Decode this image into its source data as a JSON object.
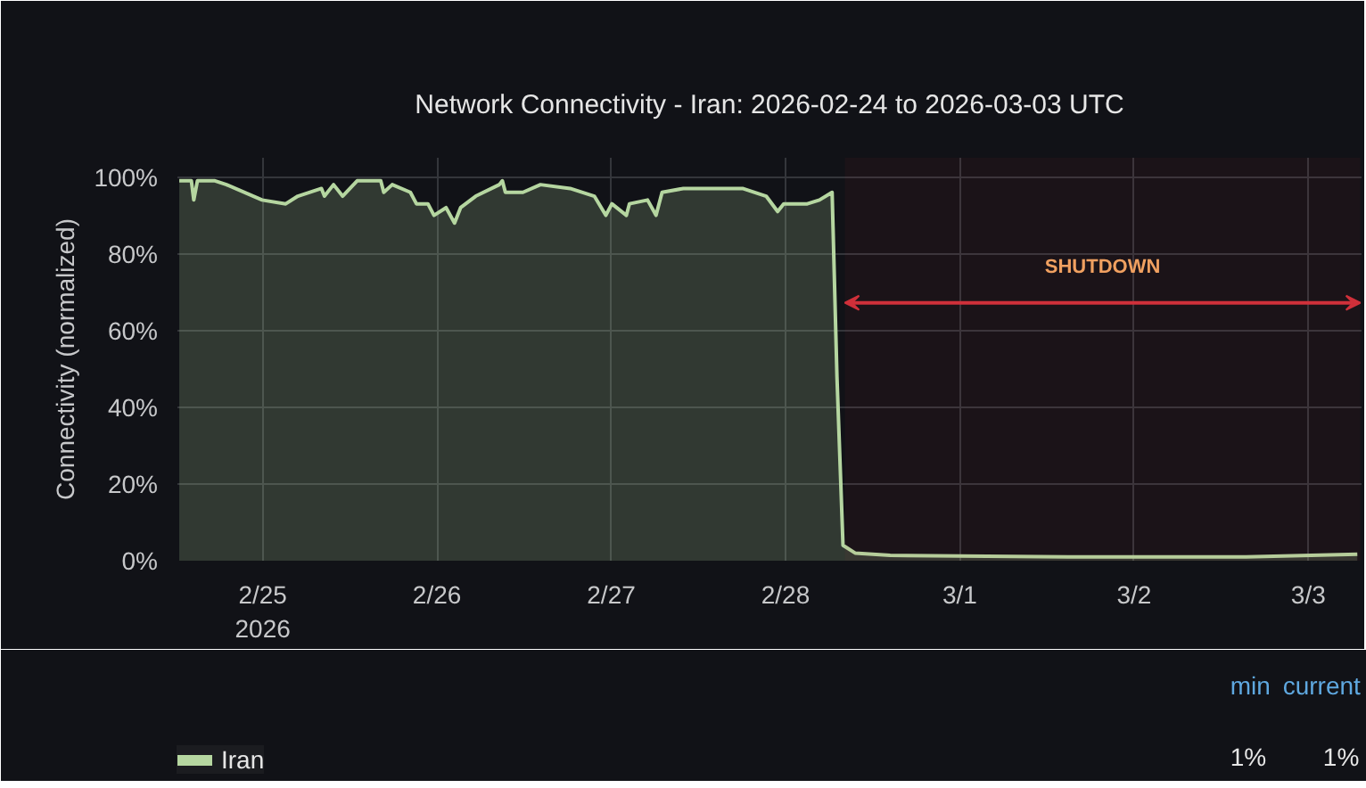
{
  "chart_data": {
    "type": "area",
    "title": "Network Connectivity - Iran: 2026-02-24 to 2026-03-03 UTC",
    "ylabel": "Connectivity (normalized)",
    "x": [
      "2026-02-24T12:30",
      "2026-02-24T14:10",
      "2026-02-24T14:30",
      "2026-02-24T15:00",
      "2026-02-24T17:25",
      "2026-02-24T19:00",
      "2026-02-24T23:55",
      "2026-02-25T03:10",
      "2026-02-25T04:50",
      "2026-02-25T08:05",
      "2026-02-25T08:30",
      "2026-02-25T09:45",
      "2026-02-25T11:00",
      "2026-02-25T13:00",
      "2026-02-25T16:15",
      "2026-02-25T16:40",
      "2026-02-25T17:50",
      "2026-02-25T20:20",
      "2026-02-25T21:10",
      "2026-02-25T22:45",
      "2026-02-25T23:35",
      "2026-02-26T01:15",
      "2026-02-26T02:25",
      "2026-02-26T03:15",
      "2026-02-26T05:20",
      "2026-02-26T08:35",
      "2026-02-26T09:00",
      "2026-02-26T09:25",
      "2026-02-26T11:50",
      "2026-02-26T14:15",
      "2026-02-26T18:20",
      "2026-02-26T21:40",
      "2026-02-26T23:15",
      "2026-02-27T00:05",
      "2026-02-27T02:05",
      "2026-02-27T02:30",
      "2026-02-27T05:00",
      "2026-02-27T06:10",
      "2026-02-27T07:00",
      "2026-02-27T09:55",
      "2026-02-27T14:00",
      "2026-02-27T18:05",
      "2026-02-27T21:20",
      "2026-02-27T22:55",
      "2026-02-27T23:45",
      "2026-02-28T03:00",
      "2026-02-28T04:40",
      "2026-02-28T06:25",
      "2026-02-28T07:05",
      "2026-02-28T07:55",
      "2026-02-28T09:35",
      "2026-02-28T14:25",
      "2026-03-01T14:55",
      "2026-03-02T15:25",
      "2026-03-03T06:45"
    ],
    "series": [
      {
        "name": "Iran",
        "color": "#b5d6a0",
        "values": [
          99,
          99,
          94,
          99,
          99,
          98,
          94,
          93,
          95,
          97,
          95,
          98,
          95,
          99,
          99,
          96,
          98,
          96,
          93,
          93,
          90,
          92,
          88,
          92,
          95,
          98,
          99,
          96,
          96,
          98,
          97,
          95,
          90,
          93,
          90,
          93,
          94,
          90,
          96,
          97,
          97,
          97,
          95,
          91,
          93,
          93,
          94,
          96,
          48,
          4,
          2,
          1.4,
          1,
          1,
          1.7
        ]
      }
    ],
    "xlim": [
      "2026-02-24T12:15",
      "2026-03-03T07:20"
    ],
    "xticks": [
      {
        "value": "2026-02-25",
        "label": "2/25\n2026"
      },
      {
        "value": "2026-02-26",
        "label": "2/26"
      },
      {
        "value": "2026-02-27",
        "label": "2/27"
      },
      {
        "value": "2026-02-28",
        "label": "2/28"
      },
      {
        "value": "2026-03-01",
        "label": "3/1"
      },
      {
        "value": "2026-03-02",
        "label": "3/2"
      },
      {
        "value": "2026-03-03",
        "label": "3/3"
      }
    ],
    "ylim": [
      0,
      105
    ],
    "yticks": [
      {
        "value": 0,
        "label": "0%"
      },
      {
        "value": 20,
        "label": "20%"
      },
      {
        "value": 40,
        "label": "40%"
      },
      {
        "value": 60,
        "label": "60%"
      },
      {
        "value": 80,
        "label": "80%"
      },
      {
        "value": 100,
        "label": "100%"
      }
    ],
    "bands": [
      {
        "axis": "x",
        "from": "2026-02-28T08:10",
        "to": "2026-03-03T07:10",
        "label": "SHUTDOWN",
        "color": "#d0303a"
      }
    ],
    "annotations": [
      "min",
      "current",
      "1%",
      "1%"
    ],
    "grid": true,
    "legend": "bottom"
  }
}
